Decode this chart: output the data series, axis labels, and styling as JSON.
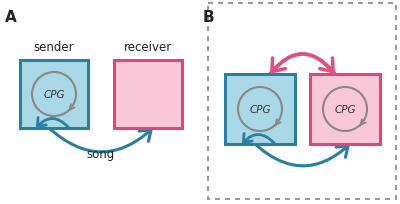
{
  "bg_color": "#ffffff",
  "blue_fill": "#aad8e6",
  "blue_border": "#2a7fa0",
  "pink_fill": "#f9c8d8",
  "pink_border": "#e0457b",
  "cpg_circle_color": "#888888",
  "cpg_text_color": "#333333",
  "teal_arrow_color": "#2a7fa0",
  "pink_arrow_color": "#e05080",
  "label_color": "#222222",
  "panel_A_label": "A",
  "panel_B_label": "B",
  "sender_label": "sender",
  "receiver_label": "receiver",
  "cpg_label": "CPG",
  "song_label": "song",
  "dotted_box_color": "#888888"
}
